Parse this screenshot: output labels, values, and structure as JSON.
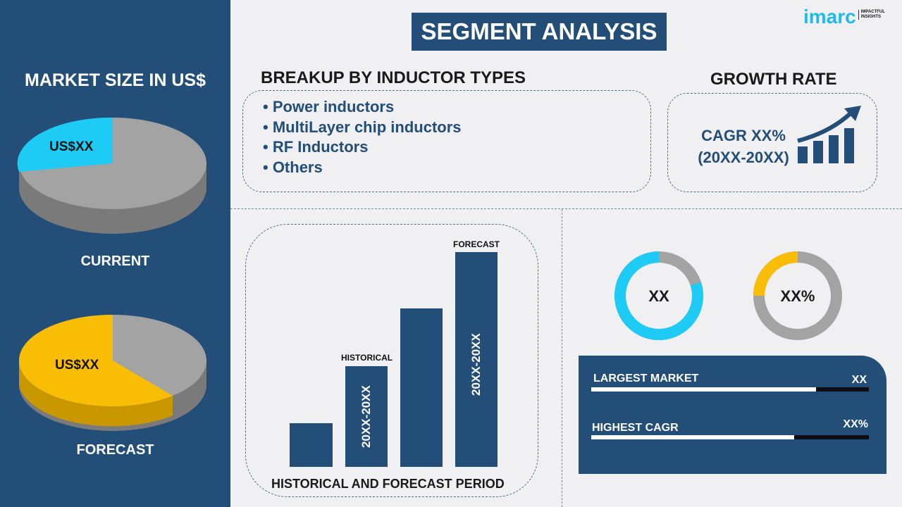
{
  "title": "SEGMENT ANALYSIS",
  "logo": {
    "brand": "imarc",
    "tagline": "IMPACTFUL INSIGHTS"
  },
  "left": {
    "heading": "MARKET SIZE IN US$",
    "current": {
      "label": "CURRENT",
      "value": "US$XX"
    },
    "forecast": {
      "label": "FORECAST",
      "value": "US$XX"
    }
  },
  "breakup": {
    "heading": "BREAKUP BY INDUCTOR TYPES",
    "items": [
      "• Power inductors",
      "• MultiLayer chip inductors",
      "• RF Inductors",
      "• Others"
    ]
  },
  "growth": {
    "heading": "GROWTH RATE",
    "cagr": "CAGR XX%",
    "period": "(20XX-20XX)"
  },
  "bars": {
    "forecast_label": "FORECAST",
    "historical_label": "HISTORICAL",
    "hist_period": "20XX-20XX",
    "fore_period": "20XX-20XX",
    "footer": "HISTORICAL AND FORECAST PERIOD"
  },
  "donuts": [
    {
      "value": "XX",
      "color": "#1ecbf5",
      "fraction": 0.8
    },
    {
      "value": "XX%",
      "color": "#f9bd05",
      "fraction": 0.25
    }
  ],
  "panel": {
    "largest_label": "LARGEST MARKET",
    "largest_value": "XX",
    "largest_fill": 0.81,
    "cagr_label": "HIGHEST CAGR",
    "cagr_value": "XX%",
    "cagr_fill": 0.73
  },
  "colors": {
    "navy": "#234e77",
    "cyan": "#1ecbf5",
    "yellow": "#f9bd05",
    "gray": "#9e9e9e"
  }
}
